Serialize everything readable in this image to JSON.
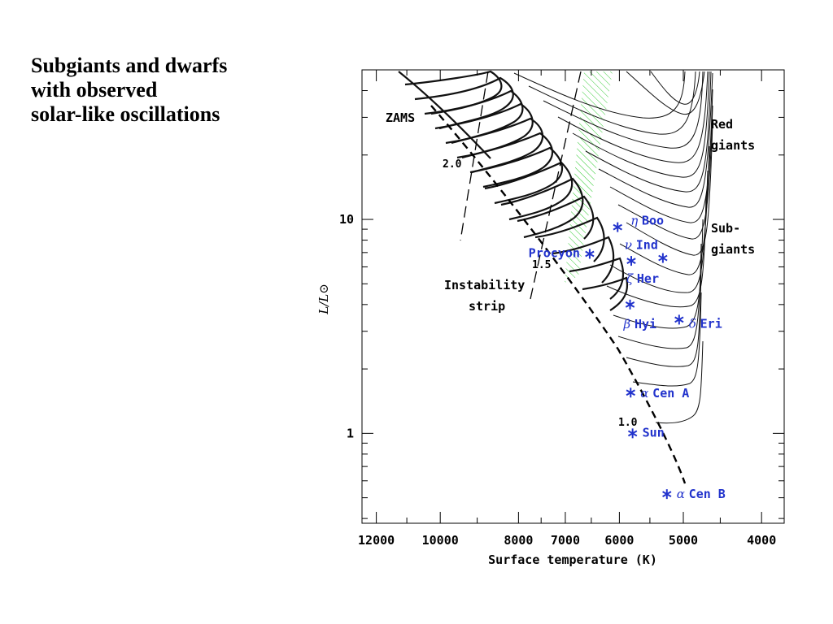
{
  "slide": {
    "title_lines": [
      "Subgiants and dwarfs",
      "with observed",
      "solar-like oscillations"
    ]
  },
  "chart_data": {
    "type": "scatter",
    "title": "",
    "xlabel": "Surface temperature (K)",
    "ylabel": "L/L⊙",
    "x_scale": "log",
    "y_scale": "log",
    "x_reversed": true,
    "x_ticks": [
      12000,
      10000,
      8000,
      7000,
      6000,
      5000,
      4000
    ],
    "y_ticks": [
      1,
      10
    ],
    "xlim": [
      12500,
      3750
    ],
    "ylim": [
      0.38,
      50
    ],
    "grid": false,
    "legend": "none",
    "colors": {
      "stars": "#2233cc",
      "instability_strip": "#33cc33",
      "tracks": "#111111"
    },
    "series": [
      {
        "name": "",
        "points": [
          {
            "label": "η Boo",
            "x": 6030,
            "y": 9.2
          },
          {
            "label": "ν Ind",
            "x": 5300,
            "y": 6.6
          },
          {
            "label": "Procyon",
            "x": 6530,
            "y": 6.9
          },
          {
            "label": "ζ Her",
            "x": 5800,
            "y": 6.4
          },
          {
            "label": "β Hyi",
            "x": 5820,
            "y": 4.0
          },
          {
            "label": "δ Eri",
            "x": 5060,
            "y": 3.4
          },
          {
            "label": "α Cen A",
            "x": 5810,
            "y": 1.55
          },
          {
            "label": "Sun",
            "x": 5778,
            "y": 1.0
          },
          {
            "label": "α Cen B",
            "x": 5240,
            "y": 0.52
          }
        ]
      }
    ],
    "annotations": [
      "ZAMS",
      "2.0",
      "1.5",
      "1.0",
      "Instability",
      "strip",
      "Red",
      "giants",
      "Sub-",
      "giants"
    ]
  }
}
